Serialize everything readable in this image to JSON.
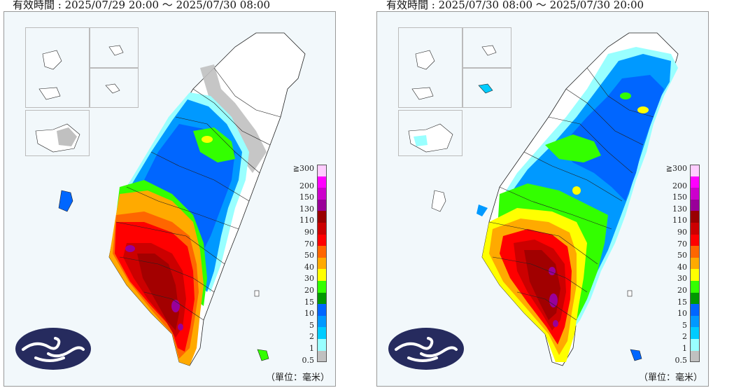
{
  "panels": [
    {
      "title": "有效時間 : 2025/07/29 20:00 ～ 2025/07/30 08:00",
      "variant": "left"
    },
    {
      "title": "有效時間 : 2025/07/30 08:00 ～ 2025/07/30 20:00",
      "variant": "right"
    }
  ],
  "legend": {
    "top_label": "≧300",
    "items": [
      {
        "label": "200",
        "color": "#ff00ff"
      },
      {
        "label": "150",
        "color": "#cc00cc"
      },
      {
        "label": "130",
        "color": "#990099"
      },
      {
        "label": "110",
        "color": "#990000"
      },
      {
        "label": "90",
        "color": "#cc0000"
      },
      {
        "label": "70",
        "color": "#ff0000"
      },
      {
        "label": "50",
        "color": "#ff6600"
      },
      {
        "label": "40",
        "color": "#ffaa00"
      },
      {
        "label": "30",
        "color": "#ffff00"
      },
      {
        "label": "20",
        "color": "#33ff00"
      },
      {
        "label": "15",
        "color": "#009900"
      },
      {
        "label": "10",
        "color": "#0066ff"
      },
      {
        "label": "5",
        "color": "#0099ff"
      },
      {
        "label": "2",
        "color": "#00ccff"
      },
      {
        "label": "1",
        "color": "#99ffff"
      },
      {
        "label": "0.5",
        "color": "#c0c0c0"
      }
    ],
    "top_color": "#ffccff"
  },
  "unit_label": "（單位：毫米）",
  "colors": {
    "land": "#ffffff",
    "boundary": "#222222",
    "logo_bg": "#262b5e",
    "frame_bg": "#f2f8fb"
  },
  "icons": {
    "logo": "cwa-cloud-logo"
  }
}
